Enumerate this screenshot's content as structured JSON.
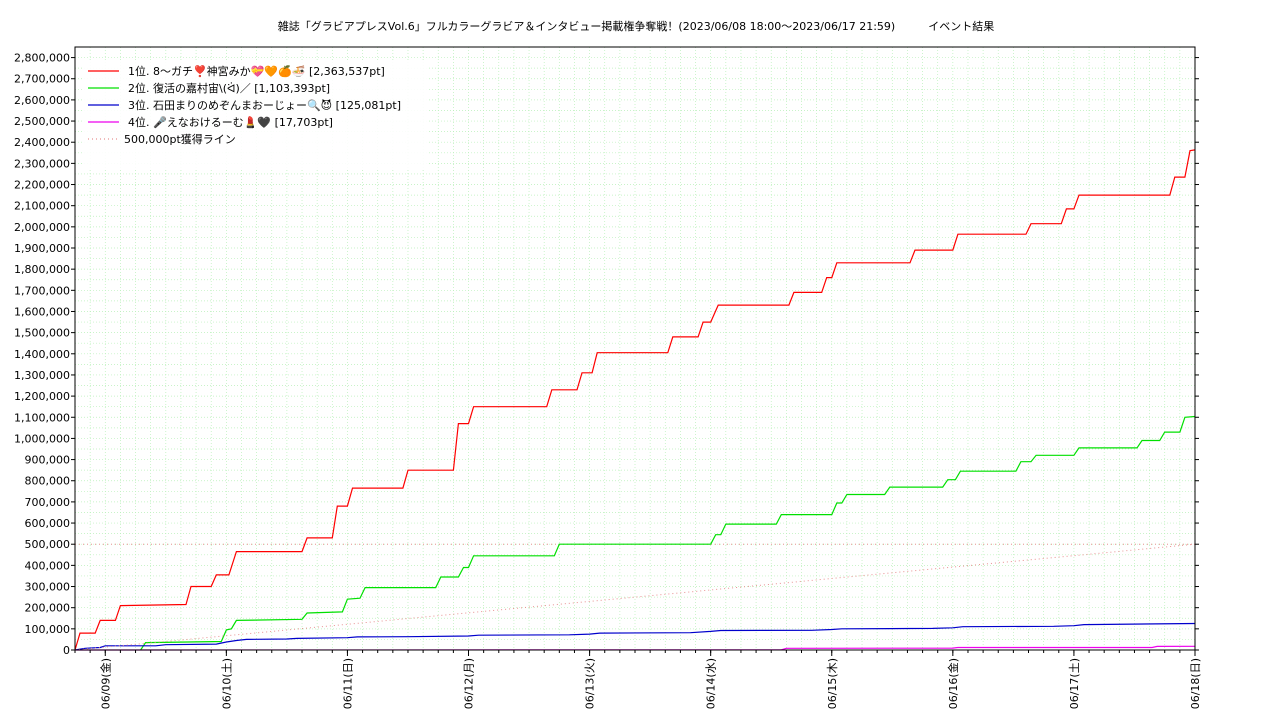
{
  "chart_data": {
    "type": "line",
    "title": "雑誌「グラビアプレスVol.6」フルカラーグラビア＆インタビュー掲載権争奪戦！(2023/06/08 18:00～2023/06/17 21:59)　　　イベント結果",
    "xlabel": "",
    "ylabel": "",
    "x_start": "2023/06/08 18:00",
    "x_end": "2023/06/18 00:00",
    "x_tick_labels": [
      "06/09(金)",
      "06/10(土)",
      "06/11(日)",
      "06/12(月)",
      "06/13(火)",
      "06/14(水)",
      "06/15(木)",
      "06/16(金)",
      "06/17(土)",
      "06/18(日)"
    ],
    "ylim": [
      0,
      2850000
    ],
    "y_ticks": [
      0,
      100000,
      200000,
      300000,
      400000,
      500000,
      600000,
      700000,
      800000,
      900000,
      1000000,
      1100000,
      1200000,
      1300000,
      1400000,
      1500000,
      1600000,
      1700000,
      1800000,
      1900000,
      2000000,
      2100000,
      2200000,
      2300000,
      2400000,
      2500000,
      2600000,
      2700000,
      2800000
    ],
    "y_tick_labels": [
      "0",
      "100,000",
      "200,000",
      "300,000",
      "400,000",
      "500,000",
      "600,000",
      "700,000",
      "800,000",
      "900,000",
      "1,000,000",
      "1,100,000",
      "1,200,000",
      "1,300,000",
      "1,400,000",
      "1,500,000",
      "1,600,000",
      "1,700,000",
      "1,800,000",
      "1,900,000",
      "2,000,000",
      "2,100,000",
      "2,200,000",
      "2,300,000",
      "2,400,000",
      "2,500,000",
      "2,600,000",
      "2,700,000",
      "2,800,000"
    ],
    "grid": true,
    "legend_position": "top-left",
    "series": [
      {
        "name": "1位. 8〜ガチ❣️神宮みか💝🧡🍊🍜 [2,363,537pt]",
        "color": "#ff0000",
        "style": "solid",
        "points": [
          [
            "06/08 18:00",
            0
          ],
          [
            "06/08 19:00",
            80000
          ],
          [
            "06/08 22:00",
            80000
          ],
          [
            "06/08 23:00",
            140000
          ],
          [
            "06/09 02:00",
            140000
          ],
          [
            "06/09 03:00",
            210000
          ],
          [
            "06/09 16:00",
            215000
          ],
          [
            "06/09 17:00",
            300000
          ],
          [
            "06/09 21:00",
            300000
          ],
          [
            "06/09 22:00",
            355000
          ],
          [
            "06/10 00:30",
            355000
          ],
          [
            "06/10 02:00",
            465000
          ],
          [
            "06/10 15:00",
            465000
          ],
          [
            "06/10 16:00",
            530000
          ],
          [
            "06/10 21:00",
            530000
          ],
          [
            "06/10 22:00",
            680000
          ],
          [
            "06/11 00:00",
            680000
          ],
          [
            "06/11 01:00",
            765000
          ],
          [
            "06/11 11:00",
            765000
          ],
          [
            "06/11 12:00",
            850000
          ],
          [
            "06/11 21:00",
            850000
          ],
          [
            "06/11 22:00",
            1070000
          ],
          [
            "06/12 00:00",
            1070000
          ],
          [
            "06/12 01:00",
            1150000
          ],
          [
            "06/12 15:30",
            1150000
          ],
          [
            "06/12 16:30",
            1230000
          ],
          [
            "06/12 21:30",
            1230000
          ],
          [
            "06/12 22:30",
            1310000
          ],
          [
            "06/13 00:30",
            1310000
          ],
          [
            "06/13 01:30",
            1405000
          ],
          [
            "06/13 15:30",
            1405000
          ],
          [
            "06/13 16:30",
            1480000
          ],
          [
            "06/13 21:30",
            1480000
          ],
          [
            "06/13 22:30",
            1550000
          ],
          [
            "06/14 00:00",
            1550000
          ],
          [
            "06/14 01:30",
            1630000
          ],
          [
            "06/14 15:30",
            1630000
          ],
          [
            "06/14 16:30",
            1690000
          ],
          [
            "06/14 22:00",
            1690000
          ],
          [
            "06/14 23:00",
            1760000
          ],
          [
            "06/15 00:00",
            1760000
          ],
          [
            "06/15 01:00",
            1830000
          ],
          [
            "06/15 15:30",
            1830000
          ],
          [
            "06/15 16:30",
            1890000
          ],
          [
            "06/16 00:00",
            1890000
          ],
          [
            "06/16 01:00",
            1965000
          ],
          [
            "06/16 14:30",
            1965000
          ],
          [
            "06/16 15:30",
            2015000
          ],
          [
            "06/16 21:30",
            2015000
          ],
          [
            "06/16 22:30",
            2085000
          ],
          [
            "06/17 00:00",
            2085000
          ],
          [
            "06/17 01:00",
            2150000
          ],
          [
            "06/17 19:00",
            2150000
          ],
          [
            "06/17 20:00",
            2235000
          ],
          [
            "06/17 22:00",
            2235000
          ],
          [
            "06/17 23:00",
            2360000
          ],
          [
            "06/18 00:00",
            2363537
          ]
        ]
      },
      {
        "name": "2位. 復活の嘉村宙\\(ᐛ)／ [1,103,393pt]",
        "color": "#00e000",
        "style": "solid",
        "points": [
          [
            "06/09 07:00",
            0
          ],
          [
            "06/09 08:00",
            35000
          ],
          [
            "06/09 23:00",
            40000
          ],
          [
            "06/10 00:00",
            95000
          ],
          [
            "06/10 01:00",
            100000
          ],
          [
            "06/10 02:00",
            140000
          ],
          [
            "06/10 15:00",
            145000
          ],
          [
            "06/10 16:00",
            175000
          ],
          [
            "06/10 23:00",
            180000
          ],
          [
            "06/11 00:00",
            240000
          ],
          [
            "06/11 02:30",
            245000
          ],
          [
            "06/11 03:30",
            295000
          ],
          [
            "06/11 17:30",
            295000
          ],
          [
            "06/11 18:30",
            345000
          ],
          [
            "06/11 22:00",
            345000
          ],
          [
            "06/11 23:00",
            390000
          ],
          [
            "06/12 00:00",
            390000
          ],
          [
            "06/12 01:00",
            445000
          ],
          [
            "06/12 17:00",
            445000
          ],
          [
            "06/12 18:00",
            500000
          ],
          [
            "06/14 00:00",
            500000
          ],
          [
            "06/14 01:00",
            545000
          ],
          [
            "06/14 02:00",
            545000
          ],
          [
            "06/14 03:00",
            595000
          ],
          [
            "06/14 13:00",
            595000
          ],
          [
            "06/14 14:00",
            640000
          ],
          [
            "06/15 00:00",
            640000
          ],
          [
            "06/15 01:00",
            695000
          ],
          [
            "06/15 02:00",
            695000
          ],
          [
            "06/15 03:00",
            735000
          ],
          [
            "06/15 10:30",
            735000
          ],
          [
            "06/15 11:30",
            770000
          ],
          [
            "06/15 22:00",
            770000
          ],
          [
            "06/15 23:00",
            805000
          ],
          [
            "06/16 00:30",
            805000
          ],
          [
            "06/16 01:30",
            845000
          ],
          [
            "06/16 12:30",
            845000
          ],
          [
            "06/16 13:30",
            890000
          ],
          [
            "06/16 15:30",
            890000
          ],
          [
            "06/16 16:30",
            920000
          ],
          [
            "06/17 00:00",
            920000
          ],
          [
            "06/17 01:00",
            955000
          ],
          [
            "06/17 12:30",
            955000
          ],
          [
            "06/17 13:30",
            990000
          ],
          [
            "06/17 17:00",
            990000
          ],
          [
            "06/17 18:00",
            1030000
          ],
          [
            "06/17 21:00",
            1030000
          ],
          [
            "06/17 22:00",
            1100000
          ],
          [
            "06/18 00:00",
            1103393
          ]
        ]
      },
      {
        "name": "3位. 石田まりのめぞんまおーじょー🔍😈 [125,081pt]",
        "color": "#0000cc",
        "style": "solid",
        "points": [
          [
            "06/08 18:00",
            0
          ],
          [
            "06/08 20:00",
            8000
          ],
          [
            "06/08 23:00",
            12000
          ],
          [
            "06/09 00:00",
            20000
          ],
          [
            "06/09 10:00",
            20000
          ],
          [
            "06/09 12:00",
            25000
          ],
          [
            "06/09 22:00",
            28000
          ],
          [
            "06/10 00:00",
            38000
          ],
          [
            "06/10 02:00",
            45000
          ],
          [
            "06/10 04:00",
            50000
          ],
          [
            "06/10 12:00",
            52000
          ],
          [
            "06/10 14:00",
            55000
          ],
          [
            "06/11 00:00",
            58000
          ],
          [
            "06/11 02:00",
            62000
          ],
          [
            "06/11 12:00",
            63000
          ],
          [
            "06/12 00:00",
            66000
          ],
          [
            "06/12 02:00",
            70000
          ],
          [
            "06/12 20:00",
            72000
          ],
          [
            "06/13 00:00",
            75000
          ],
          [
            "06/13 02:00",
            80000
          ],
          [
            "06/13 20:00",
            82000
          ],
          [
            "06/14 00:00",
            88000
          ],
          [
            "06/14 02:00",
            92000
          ],
          [
            "06/14 20:00",
            93000
          ],
          [
            "06/15 00:00",
            97000
          ],
          [
            "06/15 02:00",
            100000
          ],
          [
            "06/15 20:00",
            102000
          ],
          [
            "06/16 00:00",
            105000
          ],
          [
            "06/16 02:00",
            110000
          ],
          [
            "06/16 20:00",
            112000
          ],
          [
            "06/17 00:00",
            115000
          ],
          [
            "06/17 02:00",
            120000
          ],
          [
            "06/18 00:00",
            125081
          ]
        ]
      },
      {
        "name": "4位. 🎤えなおけるーむ💄🖤 [17,703pt]",
        "color": "#ee00ee",
        "style": "solid",
        "points": [
          [
            "06/08 18:00",
            0
          ],
          [
            "06/14 14:00",
            1000
          ],
          [
            "06/14 15:00",
            8000
          ],
          [
            "06/16 00:00",
            9000
          ],
          [
            "06/16 01:00",
            12000
          ],
          [
            "06/17 15:30",
            12000
          ],
          [
            "06/17 16:30",
            17000
          ],
          [
            "06/18 00:00",
            17703
          ]
        ]
      },
      {
        "name": "500,000pt獲得ライン",
        "color": "#e89090",
        "style": "dotted",
        "points": [
          [
            "06/08 18:00",
            0
          ],
          [
            "06/18 00:00",
            500000
          ]
        ]
      }
    ],
    "reference_line": {
      "y": 500000,
      "color": "#e89090",
      "style": "dotted"
    }
  }
}
